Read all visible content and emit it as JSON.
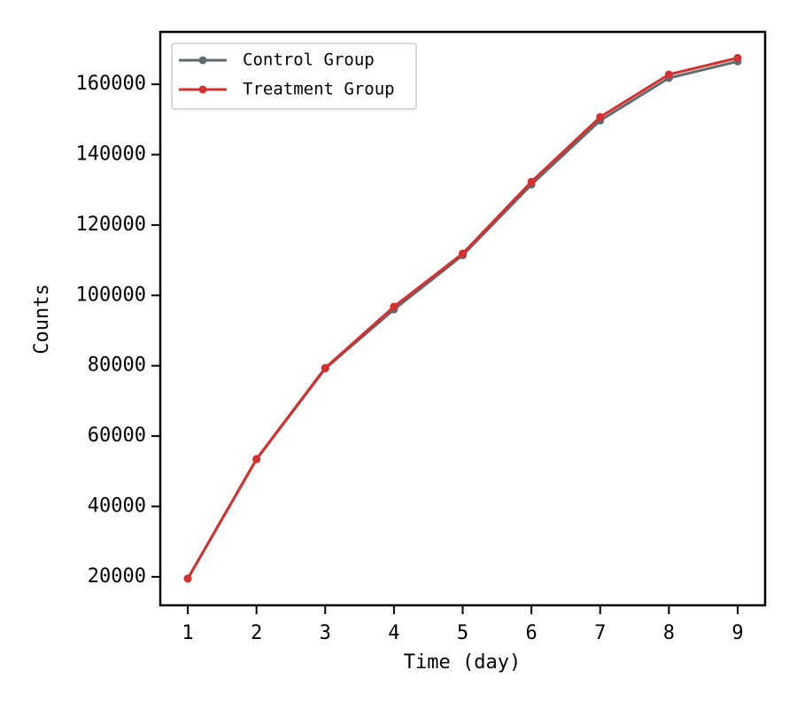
{
  "chart_data": {
    "type": "line",
    "x_label": "Time (day)",
    "y_label": "Counts",
    "x": [
      1,
      2,
      3,
      4,
      5,
      6,
      7,
      8,
      9
    ],
    "series": [
      {
        "name": "Control Group",
        "color": "#5f6b6d",
        "values": [
          19500,
          53400,
          79200,
          96000,
          111400,
          131500,
          149700,
          161800,
          166500
        ]
      },
      {
        "name": "Treatment Group",
        "color": "#d62f2f",
        "values": [
          19500,
          53500,
          79400,
          96800,
          111900,
          132300,
          150700,
          162800,
          167500
        ]
      }
    ],
    "xlim": [
      0.6,
      9.4
    ],
    "xticks": [
      1,
      2,
      3,
      4,
      5,
      6,
      7,
      8,
      9
    ],
    "ylim": [
      11900,
      174900
    ],
    "yticks": [
      20000,
      40000,
      60000,
      80000,
      100000,
      120000,
      140000,
      160000
    ],
    "grid": false,
    "legend": "upper left"
  }
}
